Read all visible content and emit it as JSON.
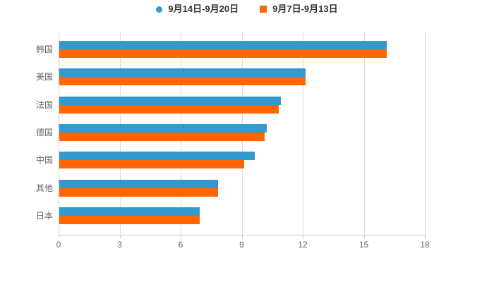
{
  "legend": {
    "items": [
      {
        "label": "9月14日-9月20日",
        "marker": "circle"
      },
      {
        "label": "9月7日-9月13日",
        "marker": "square"
      }
    ]
  },
  "chart_data": {
    "type": "bar",
    "orientation": "horizontal",
    "title": "",
    "xlabel": "",
    "ylabel": "",
    "categories": [
      "韩国",
      "美国",
      "法国",
      "德国",
      "中国",
      "其他",
      "日本"
    ],
    "series": [
      {
        "name": "9月14日-9月20日",
        "color": "#3399CC",
        "values": [
          16.1,
          12.1,
          10.9,
          10.2,
          9.6,
          7.8,
          6.9
        ]
      },
      {
        "name": "9月7日-9月13日",
        "color": "#FF6600",
        "values": [
          16.1,
          12.1,
          10.8,
          10.1,
          9.1,
          7.8,
          6.9
        ]
      }
    ],
    "xlim": [
      0,
      18
    ],
    "xticks": [
      0,
      3,
      6,
      9,
      12,
      15,
      18
    ],
    "xtick_labels": [
      "0",
      "3",
      "6",
      "9",
      "12",
      "15",
      "18"
    ],
    "grid": true,
    "legend_position": "top"
  },
  "colors": {
    "background": "#FFFFFF",
    "grid_line": "#DCDCDC",
    "axis_line": "#C9C9C9",
    "tick_label": "#666666",
    "category_label": "#666666",
    "legend_text": "#333333",
    "series_blue": "#3399CC",
    "series_orange": "#FF6600"
  }
}
